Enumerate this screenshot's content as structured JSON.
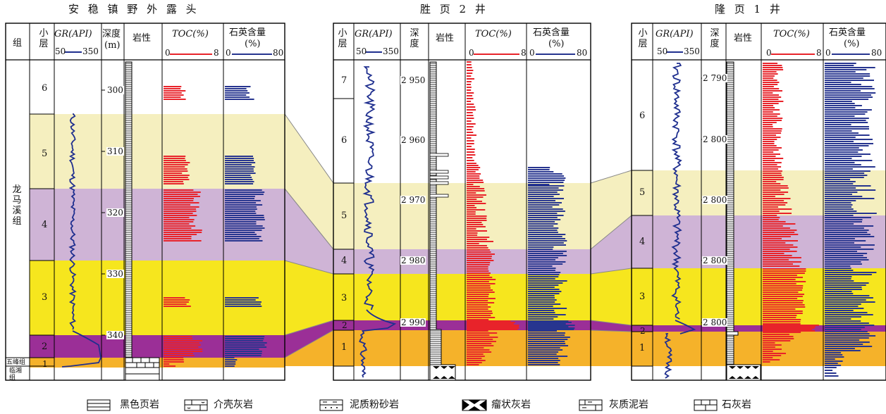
{
  "titles": {
    "left": "安 稳 镇 野 外 露 头",
    "mid": "胜 页 2 井",
    "right": "隆 页 1 井"
  },
  "headers": {
    "zu": "组",
    "xiaoceng": "小\n层",
    "gr": "GR(API)",
    "gr_scale_min": "50",
    "gr_scale_max": "350",
    "shendu": "深度",
    "shendu_unit": "(m)",
    "yanxing": "岩性",
    "toc": "TOC(%)",
    "toc_min": "0",
    "toc_max": "8",
    "quartz": "石英含量",
    "quartz_unit": "(%)",
    "quartz_min": "0",
    "quartz_max": "80"
  },
  "formations": {
    "longmaxi": "龙\n马\n溪\n组",
    "wufeng": "五峰组",
    "linxiang": "临湘\n组"
  },
  "left_section": {
    "layers": [
      "6",
      "5",
      "4",
      "3",
      "2",
      "1"
    ],
    "depths": [
      "300",
      "310",
      "320",
      "330",
      "340"
    ]
  },
  "mid_section": {
    "layers": [
      "7",
      "6",
      "5",
      "4",
      "3",
      "2",
      "1"
    ],
    "depths": [
      "2 950",
      "2 960",
      "2 970",
      "2 980",
      "2 990"
    ]
  },
  "right_section": {
    "layers": [
      "6",
      "5",
      "4",
      "3",
      "2",
      "1"
    ],
    "depths": [
      "2 790",
      "2 800",
      "2 800",
      "2 800",
      "2 800"
    ]
  },
  "legend": [
    {
      "label": "黑色页岩",
      "icon": "black-shale-icon"
    },
    {
      "label": "介壳灰岩",
      "icon": "shell-limestone-icon"
    },
    {
      "label": "泥质粉砂岩",
      "icon": "argillaceous-siltstone-icon"
    },
    {
      "label": "瘤状灰岩",
      "icon": "nodular-limestone-icon"
    },
    {
      "label": "灰质泥岩",
      "icon": "calcareous-mudstone-icon"
    },
    {
      "label": "石灰岩",
      "icon": "limestone-icon"
    }
  ],
  "colors": {
    "layer5_6": "#f5efbf",
    "layer4": "#cfb4d6",
    "layer3": "#f6e61e",
    "layer2": "#9b2f97",
    "layer1": "#f5b22a",
    "toc": "#e8232a",
    "quartz": "#27358f",
    "gr": "#1f2f8f"
  }
}
